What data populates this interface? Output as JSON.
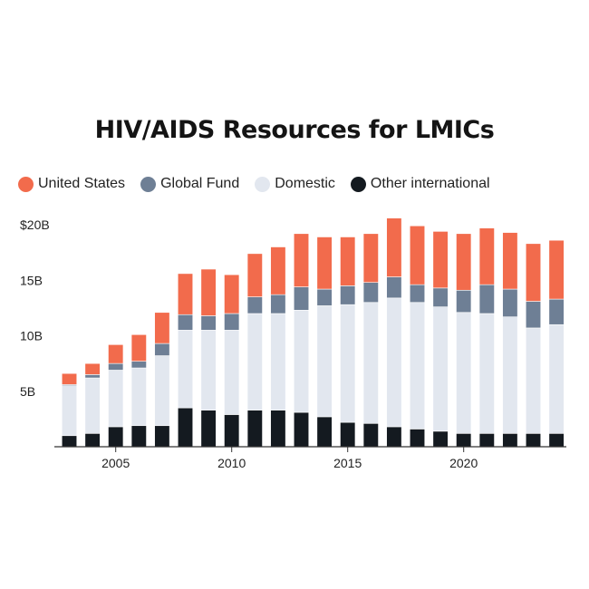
{
  "colors": {
    "united_states": "#f26b4c",
    "global_fund": "#6e7f95",
    "domestic": "#e2e7ef",
    "other_international": "#141a20",
    "axis": "#333333"
  },
  "chart_data": {
    "type": "bar",
    "stacked": true,
    "title": "HIV/AIDS Resources for LMICs",
    "xlabel": "",
    "ylabel": "",
    "x": [
      2003,
      2004,
      2005,
      2006,
      2007,
      2008,
      2009,
      2010,
      2011,
      2012,
      2013,
      2014,
      2015,
      2016,
      2017,
      2018,
      2019,
      2020,
      2021,
      2022,
      2023,
      2024
    ],
    "ylim": [
      0,
      20
    ],
    "yticks": [
      {
        "value": 5,
        "label": "5B"
      },
      {
        "value": 10,
        "label": "10B"
      },
      {
        "value": 15,
        "label": "15B"
      },
      {
        "value": 20,
        "label": "$20B"
      }
    ],
    "xticks": [
      {
        "value": 2005,
        "label": "2005"
      },
      {
        "value": 2010,
        "label": "2010"
      },
      {
        "value": 2015,
        "label": "2015"
      },
      {
        "value": 2020,
        "label": "2020"
      }
    ],
    "legend_position": "top-left",
    "series": [
      {
        "name": "Other international",
        "key": "other_international",
        "values": [
          1.0,
          1.2,
          1.8,
          1.9,
          1.9,
          3.5,
          3.3,
          2.9,
          3.3,
          3.3,
          3.1,
          2.7,
          2.2,
          2.1,
          1.8,
          1.6,
          1.4,
          1.2,
          1.2,
          1.2,
          1.2,
          1.2
        ]
      },
      {
        "name": "Domestic",
        "key": "domestic",
        "values": [
          4.5,
          5.0,
          5.1,
          5.2,
          6.3,
          7.0,
          7.2,
          7.6,
          8.7,
          8.7,
          9.2,
          10.0,
          10.6,
          10.9,
          11.6,
          11.4,
          11.2,
          10.9,
          10.8,
          10.5,
          9.5,
          9.8
        ]
      },
      {
        "name": "Global Fund",
        "key": "global_fund",
        "values": [
          0.1,
          0.3,
          0.6,
          0.6,
          1.1,
          1.4,
          1.3,
          1.5,
          1.5,
          1.7,
          2.1,
          1.5,
          1.7,
          1.8,
          1.9,
          1.6,
          1.7,
          2.0,
          2.6,
          2.5,
          2.4,
          2.3
        ]
      },
      {
        "name": "United States",
        "key": "united_states",
        "values": [
          1.0,
          1.0,
          1.7,
          2.4,
          2.8,
          3.7,
          4.2,
          3.5,
          3.9,
          4.3,
          4.8,
          4.7,
          4.4,
          4.4,
          5.3,
          5.3,
          5.1,
          5.1,
          5.1,
          5.1,
          5.2,
          5.3
        ]
      }
    ],
    "legend": [
      {
        "name": "United States",
        "key": "united_states"
      },
      {
        "name": "Global Fund",
        "key": "global_fund"
      },
      {
        "name": "Domestic",
        "key": "domestic"
      },
      {
        "name": "Other international",
        "key": "other_international"
      }
    ]
  }
}
